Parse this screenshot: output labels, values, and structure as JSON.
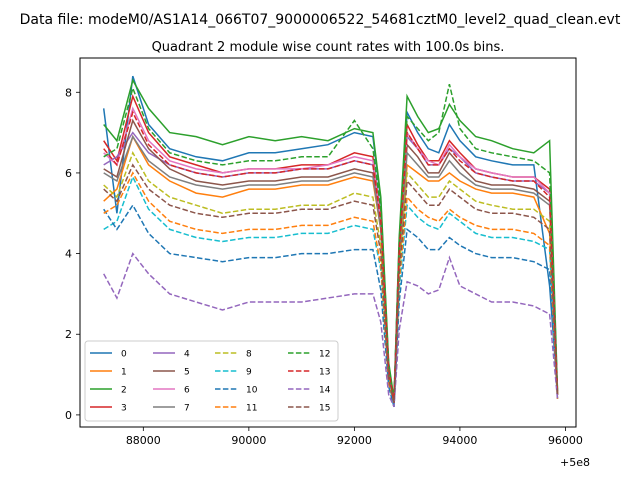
{
  "chart_data": {
    "type": "line",
    "suptitle": "Data file: modeM0/AS1A14_066T07_9000006522_54681cztM0_level2_quad_clean.evt",
    "title": "Quadrant 2 module wise count rates with 100.0s bins.",
    "xlabel": "",
    "ylabel": "",
    "x_offset_label": "+5e8",
    "xlim": [
      86800,
      96200
    ],
    "ylim": [
      -0.3,
      8.85
    ],
    "x_ticks": [
      88000,
      90000,
      92000,
      94000,
      96000
    ],
    "x_tick_labels": [
      "88000",
      "90000",
      "92000",
      "94000",
      "96000"
    ],
    "y_ticks": [
      0,
      2,
      4,
      6,
      8
    ],
    "y_tick_labels": [
      "0",
      "2",
      "4",
      "6",
      "8"
    ],
    "x_key": [
      87250,
      87500,
      87800,
      88100,
      88500,
      89000,
      89500,
      90000,
      90500,
      91000,
      91500,
      92000,
      92350,
      92500,
      92650,
      92750,
      92850,
      93000,
      93200,
      93400,
      93600,
      93800,
      94000,
      94300,
      94600,
      95000,
      95400,
      95700,
      95850
    ],
    "series": [
      {
        "name": "0",
        "color": "#1f77b4",
        "dash": "solid",
        "values": [
          7.6,
          5.0,
          8.4,
          7.2,
          6.6,
          6.4,
          6.3,
          6.5,
          6.5,
          6.6,
          6.7,
          7.0,
          6.9,
          5.3,
          1.2,
          0.35,
          4.3,
          7.5,
          7.0,
          6.6,
          6.5,
          7.2,
          6.8,
          6.4,
          6.3,
          6.2,
          6.2,
          3.2,
          0.6
        ]
      },
      {
        "name": "1",
        "color": "#ff7f0e",
        "dash": "solid",
        "values": [
          5.3,
          5.6,
          6.9,
          6.2,
          5.8,
          5.5,
          5.4,
          5.6,
          5.6,
          5.7,
          5.7,
          5.9,
          5.8,
          4.6,
          1.0,
          0.3,
          3.8,
          6.2,
          6.0,
          5.8,
          5.8,
          6.0,
          5.8,
          5.6,
          5.5,
          5.5,
          5.4,
          4.5,
          0.5
        ]
      },
      {
        "name": "2",
        "color": "#2ca02c",
        "dash": "solid",
        "values": [
          7.2,
          6.8,
          8.3,
          7.6,
          7.0,
          6.9,
          6.7,
          6.9,
          6.8,
          6.9,
          6.8,
          7.1,
          7.0,
          5.4,
          1.3,
          0.4,
          4.4,
          7.9,
          7.4,
          7.0,
          7.1,
          7.7,
          7.3,
          6.9,
          6.8,
          6.6,
          6.5,
          6.8,
          0.6
        ]
      },
      {
        "name": "3",
        "color": "#d62728",
        "dash": "solid",
        "values": [
          6.8,
          6.3,
          7.9,
          7.0,
          6.4,
          6.2,
          6.0,
          6.1,
          6.1,
          6.2,
          6.2,
          6.5,
          6.4,
          4.9,
          1.1,
          0.3,
          4.1,
          7.2,
          6.7,
          6.3,
          6.3,
          6.8,
          6.5,
          6.1,
          6.0,
          5.9,
          5.9,
          5.6,
          0.5
        ]
      },
      {
        "name": "4",
        "color": "#9467bd",
        "dash": "solid",
        "values": [
          6.2,
          6.4,
          7.0,
          6.5,
          6.2,
          6.0,
          5.9,
          6.0,
          6.0,
          6.1,
          6.1,
          6.3,
          6.2,
          4.8,
          1.0,
          0.3,
          4.0,
          6.9,
          6.6,
          6.2,
          6.2,
          6.6,
          6.4,
          6.0,
          5.9,
          5.8,
          5.8,
          5.5,
          0.5
        ]
      },
      {
        "name": "5",
        "color": "#8c564b",
        "dash": "solid",
        "values": [
          6.1,
          5.9,
          7.3,
          6.6,
          6.1,
          5.8,
          5.7,
          5.8,
          5.8,
          5.9,
          5.9,
          6.1,
          6.0,
          4.7,
          1.0,
          0.3,
          3.9,
          6.7,
          6.4,
          6.0,
          6.0,
          6.5,
          6.2,
          5.8,
          5.7,
          5.7,
          5.6,
          5.3,
          0.5
        ]
      },
      {
        "name": "6",
        "color": "#e377c2",
        "dash": "solid",
        "values": [
          6.5,
          6.2,
          7.6,
          6.8,
          6.3,
          6.1,
          6.0,
          6.1,
          6.1,
          6.1,
          6.2,
          6.4,
          6.3,
          4.8,
          1.1,
          0.3,
          4.0,
          7.0,
          6.6,
          6.3,
          6.2,
          6.7,
          6.4,
          6.1,
          6.0,
          5.9,
          5.9,
          5.5,
          0.5
        ]
      },
      {
        "name": "7",
        "color": "#7f7f7f",
        "dash": "solid",
        "values": [
          6.0,
          5.8,
          6.9,
          6.3,
          5.9,
          5.7,
          5.6,
          5.7,
          5.7,
          5.8,
          5.8,
          6.0,
          5.9,
          4.6,
          1.0,
          0.3,
          3.8,
          6.5,
          6.2,
          5.9,
          5.9,
          6.3,
          6.0,
          5.7,
          5.6,
          5.6,
          5.5,
          5.2,
          0.5
        ]
      },
      {
        "name": "8",
        "color": "#bcbd22",
        "dash": "dashed",
        "values": [
          5.7,
          5.4,
          6.5,
          5.8,
          5.4,
          5.2,
          5.0,
          5.1,
          5.1,
          5.2,
          5.2,
          5.5,
          5.4,
          4.2,
          0.9,
          0.3,
          3.6,
          6.0,
          5.7,
          5.4,
          5.4,
          5.8,
          5.6,
          5.3,
          5.2,
          5.1,
          5.1,
          4.8,
          0.5
        ]
      },
      {
        "name": "9",
        "color": "#17becf",
        "dash": "dashed",
        "values": [
          4.6,
          4.8,
          5.9,
          5.1,
          4.6,
          4.4,
          4.3,
          4.4,
          4.4,
          4.5,
          4.5,
          4.7,
          4.6,
          3.6,
          0.8,
          0.2,
          3.1,
          5.2,
          4.9,
          4.7,
          4.6,
          5.0,
          4.8,
          4.5,
          4.4,
          4.4,
          4.3,
          4.1,
          0.4
        ]
      },
      {
        "name": "10",
        "color": "#1f77b4",
        "dash": "dashed",
        "values": [
          5.1,
          4.6,
          5.2,
          4.5,
          4.0,
          3.9,
          3.8,
          3.9,
          3.9,
          4.0,
          4.0,
          4.1,
          4.1,
          3.1,
          0.7,
          0.2,
          2.8,
          4.6,
          4.4,
          4.1,
          4.1,
          4.4,
          4.2,
          4.0,
          3.9,
          3.9,
          3.8,
          3.6,
          0.4
        ]
      },
      {
        "name": "11",
        "color": "#ff7f0e",
        "dash": "dashed",
        "values": [
          5.0,
          5.2,
          6.0,
          5.3,
          4.8,
          4.6,
          4.5,
          4.6,
          4.6,
          4.7,
          4.7,
          4.9,
          4.8,
          3.7,
          0.8,
          0.3,
          3.3,
          5.4,
          5.1,
          4.9,
          4.8,
          5.1,
          4.9,
          4.7,
          4.6,
          4.6,
          4.5,
          4.2,
          0.4
        ]
      },
      {
        "name": "12",
        "color": "#2ca02c",
        "dash": "dashed",
        "values": [
          6.4,
          6.6,
          8.1,
          7.1,
          6.5,
          6.3,
          6.2,
          6.3,
          6.3,
          6.4,
          6.4,
          7.3,
          6.6,
          5.1,
          1.2,
          0.4,
          4.2,
          7.4,
          7.1,
          6.8,
          7.0,
          8.2,
          7.1,
          6.6,
          6.5,
          6.4,
          6.3,
          6.0,
          0.6
        ]
      },
      {
        "name": "13",
        "color": "#d62728",
        "dash": "dashed",
        "values": [
          6.6,
          6.2,
          7.5,
          6.7,
          6.2,
          6.0,
          5.9,
          6.0,
          6.0,
          6.1,
          6.1,
          6.3,
          6.2,
          4.8,
          1.1,
          0.3,
          4.0,
          7.0,
          6.6,
          6.2,
          6.2,
          6.6,
          6.3,
          6.0,
          5.9,
          5.8,
          5.8,
          5.4,
          0.5
        ]
      },
      {
        "name": "14",
        "color": "#9467bd",
        "dash": "dashed",
        "values": [
          3.5,
          2.9,
          4.0,
          3.5,
          3.0,
          2.8,
          2.6,
          2.8,
          2.8,
          2.8,
          2.9,
          3.0,
          3.0,
          2.3,
          0.5,
          0.2,
          2.1,
          3.3,
          3.2,
          3.0,
          3.1,
          3.9,
          3.2,
          3.0,
          2.8,
          2.8,
          2.7,
          2.5,
          0.4
        ]
      },
      {
        "name": "15",
        "color": "#8c564b",
        "dash": "dashed",
        "values": [
          5.6,
          5.3,
          6.2,
          5.6,
          5.2,
          5.0,
          4.9,
          5.0,
          5.0,
          5.1,
          5.1,
          5.3,
          5.2,
          4.0,
          0.9,
          0.3,
          3.5,
          5.8,
          5.5,
          5.2,
          5.2,
          5.6,
          5.4,
          5.1,
          5.0,
          5.0,
          4.9,
          4.6,
          0.5
        ]
      }
    ]
  }
}
